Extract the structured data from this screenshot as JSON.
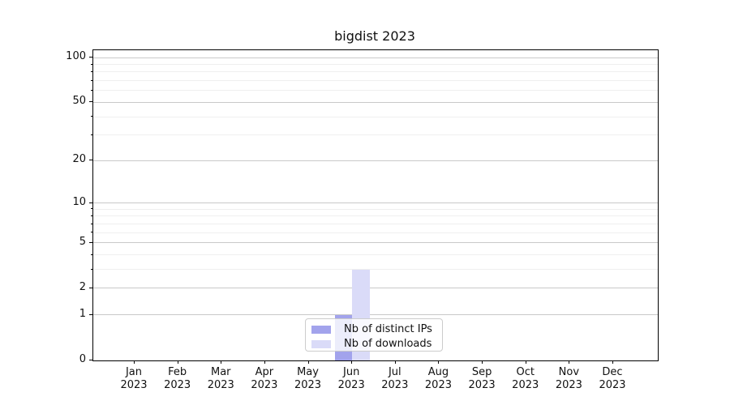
{
  "chart_data": {
    "type": "bar",
    "title": "bigdist 2023",
    "categories": [
      "Jan",
      "Feb",
      "Mar",
      "Apr",
      "May",
      "Jun",
      "Jul",
      "Aug",
      "Sep",
      "Oct",
      "Nov",
      "Dec"
    ],
    "year_label": "2023",
    "series": [
      {
        "name": "Nb of distinct IPs",
        "color": "#a2a3ec",
        "values": [
          0,
          0,
          0,
          0,
          0,
          1,
          0,
          0,
          0,
          0,
          0,
          0
        ]
      },
      {
        "name": "Nb of downloads",
        "color": "#dadbf8",
        "values": [
          0,
          0,
          0,
          0,
          0,
          3,
          0,
          0,
          0,
          0,
          0,
          0
        ]
      }
    ],
    "yscale": "log1p",
    "ylim": [
      0,
      112
    ],
    "yticks": [
      0,
      1,
      2,
      5,
      10,
      20,
      50,
      100
    ],
    "minor_yticks": [
      3,
      4,
      6,
      7,
      8,
      9,
      30,
      40,
      60,
      70,
      80,
      90
    ],
    "grid": true,
    "legend_position": "lower center",
    "axis_color": "#000000",
    "major_grid_color": "#c9c9c9",
    "minor_grid_color": "#efefef"
  }
}
